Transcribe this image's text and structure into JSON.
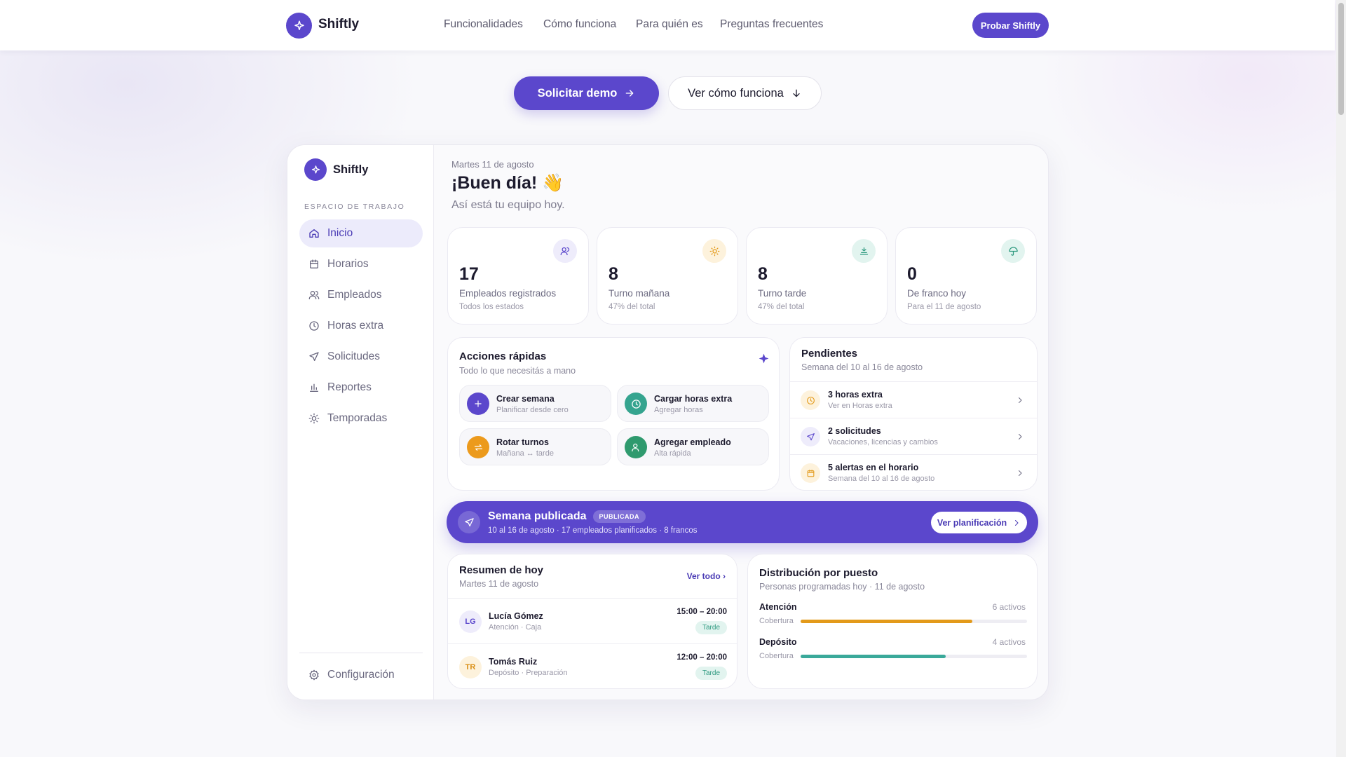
{
  "header": {
    "brand": "Shiftly",
    "nav": [
      "Funcionalidades",
      "Cómo funciona",
      "Para quién es",
      "Preguntas frecuentes"
    ],
    "cta": "Probar Shiftly"
  },
  "hero": {
    "primary": "Solicitar demo",
    "secondary": "Ver cómo funciona"
  },
  "app": {
    "sidebar": {
      "brand": "Shiftly",
      "section": "ESPACIO DE TRABAJO",
      "items": [
        "Inicio",
        "Horarios",
        "Empleados",
        "Horas extra",
        "Solicitudes",
        "Reportes",
        "Temporadas"
      ],
      "settings": "Configuración"
    },
    "greeting": {
      "date": "Martes 11 de agosto",
      "title": "¡Buen día! 👋",
      "subtitle": "Así está tu equipo hoy."
    },
    "stats": [
      {
        "value": 17,
        "label": "Empleados registrados",
        "note": "Todos los estados"
      },
      {
        "value": 8,
        "label": "Turno mañana",
        "note": "47% del total"
      },
      {
        "value": 8,
        "label": "Turno tarde",
        "note": "47% del total"
      },
      {
        "value": 0,
        "label": "De franco hoy",
        "note": "Para el 11 de agosto"
      }
    ],
    "quick_actions": {
      "title": "Acciones rápidas",
      "subtitle": "Todo lo que necesitás a mano",
      "items": [
        {
          "title": "Crear semana",
          "subtitle": "Planificar desde cero"
        },
        {
          "title": "Cargar horas extra",
          "subtitle": "Agregar horas"
        },
        {
          "title": "Rotar turnos",
          "subtitle": "Mañana ↔ tarde"
        },
        {
          "title": "Agregar empleado",
          "subtitle": "Alta rápida"
        }
      ]
    },
    "pending": {
      "title": "Pendientes",
      "subtitle": "Semana del 10 al 16 de agosto",
      "items": [
        {
          "title": "3 horas extra",
          "subtitle": "Ver en Horas extra"
        },
        {
          "title": "2 solicitudes",
          "subtitle": "Vacaciones, licencias y cambios"
        },
        {
          "title": "5 alertas en el horario",
          "subtitle": "Semana del 10 al 16 de agosto"
        }
      ]
    },
    "banner": {
      "title": "Semana publicada",
      "badge": "PUBLICADA",
      "subtitle": "10 al 16 de agosto · 17 empleados planificados · 8 francos",
      "button": "Ver planificación"
    },
    "today": {
      "title": "Resumen de hoy",
      "subtitle": "Martes 11 de agosto",
      "link": "Ver todo ›",
      "rows": [
        {
          "initials": "LG",
          "name": "Lucía Gómez",
          "role": "Atención · Caja",
          "time": "15:00 – 20:00",
          "shift": "Tarde"
        },
        {
          "initials": "TR",
          "name": "Tomás Ruiz",
          "role": "Depósito · Preparación",
          "time": "12:00 – 20:00",
          "shift": "Tarde"
        }
      ]
    },
    "distribution": {
      "title": "Distribución por puesto",
      "subtitle": "Personas programadas hoy · 11 de agosto",
      "rows": [
        {
          "name": "Atención",
          "count": "6 activos",
          "bar_label": "Cobertura",
          "coverage": 76
        },
        {
          "name": "Depósito",
          "count": "4 activos",
          "bar_label": "Cobertura",
          "coverage": 64
        }
      ]
    }
  }
}
